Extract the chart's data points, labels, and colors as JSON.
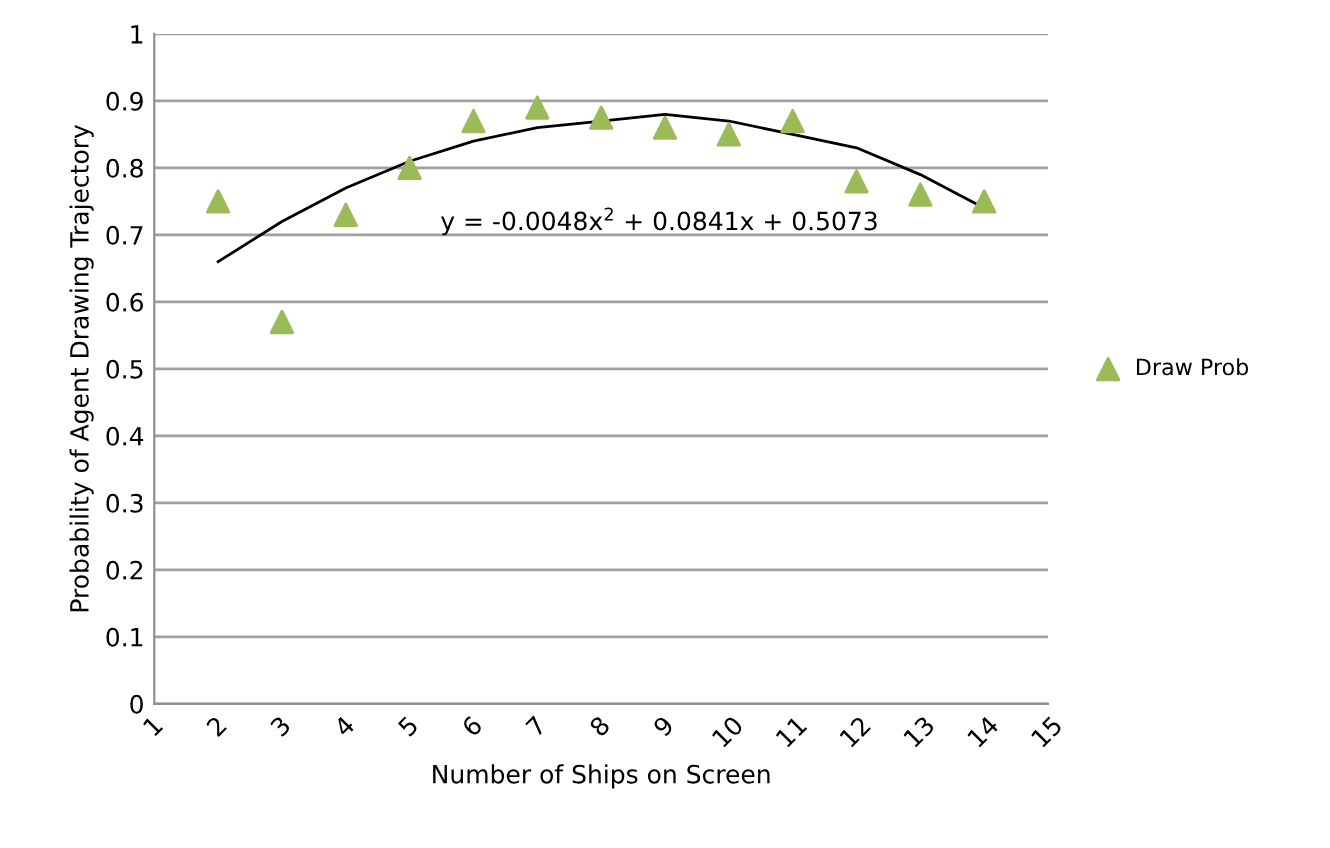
{
  "chart_data": {
    "type": "scatter",
    "xlabel": "Number of Ships on Screen",
    "ylabel": "Probability of Agent Drawing Trajectory",
    "x": [
      2,
      3,
      4,
      5,
      6,
      7,
      8,
      9,
      10,
      11,
      12,
      13,
      14
    ],
    "series": [
      {
        "name": "Draw Prob",
        "color": "#9bbb59",
        "marker": "triangle",
        "values": [
          0.75,
          0.57,
          0.73,
          0.8,
          0.87,
          0.89,
          0.875,
          0.86,
          0.85,
          0.87,
          0.78,
          0.76,
          0.75
        ]
      },
      {
        "type": "line",
        "color": "#000000",
        "line_style": "solid",
        "marker": "none",
        "x": [
          2,
          3,
          4,
          5,
          6,
          7,
          8,
          9,
          10,
          11,
          12,
          13,
          14
        ],
        "values": [
          0.66,
          0.72,
          0.77,
          0.81,
          0.84,
          0.86,
          0.87,
          0.88,
          0.87,
          0.85,
          0.83,
          0.79,
          0.74
        ]
      }
    ],
    "annotations": [
      "y = -0.0048x$^{2}$ + 0.0841x + 0.5073"
    ],
    "xlim": [
      1,
      15
    ],
    "xticks": [
      1,
      2,
      3,
      4,
      5,
      6,
      7,
      8,
      9,
      10,
      11,
      12,
      13,
      14,
      15
    ],
    "ylim": [
      0,
      1
    ],
    "yticks": [
      0,
      0.1,
      0.2,
      0.3,
      0.4,
      0.5,
      0.6,
      0.7,
      0.8,
      0.9,
      1
    ],
    "grid": "y",
    "legend": "right"
  }
}
